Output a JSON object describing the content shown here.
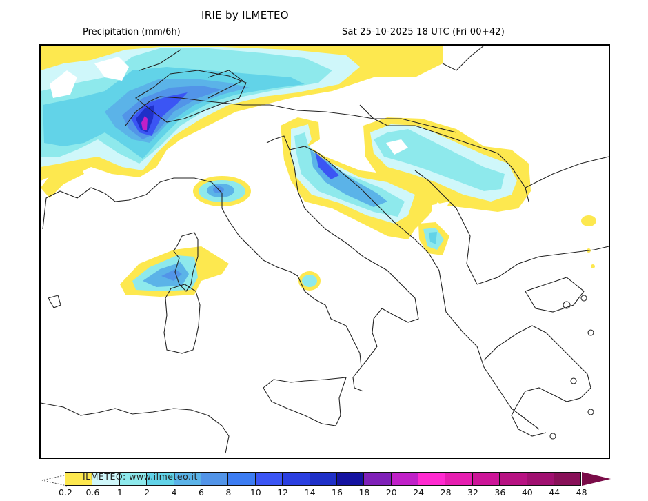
{
  "header": {
    "title": "IRIE by ILMETEO",
    "parameter": "Precipitation (mm/6h)",
    "valid_time": "Sat 25-10-2025 18 UTC (Fri 00+42)"
  },
  "map": {
    "region": "Italy, Alps and Balkans",
    "features": [
      {
        "name": "Western Alps / Rhône-Alpes max",
        "max_class": "20-24 mm"
      },
      {
        "name": "Northern Adriatic / Croatian coast",
        "max_class": "10-12 mm"
      },
      {
        "name": "Corsica",
        "max_class": "6-8 mm"
      },
      {
        "name": "Ligurian Sea",
        "max_class": "6-8 mm"
      },
      {
        "name": "Serbia / Romania",
        "max_class": "1-2 mm"
      },
      {
        "name": "Montenegro / Albania",
        "max_class": "2-4 mm"
      },
      {
        "name": "Lazio coast",
        "max_class": "1-2 mm"
      }
    ]
  },
  "legend": {
    "watermark": "ILMETEO: www.ilmeteo.it",
    "unit": "mm/6h",
    "labels": [
      "0.2",
      "0.6",
      "1",
      "2",
      "4",
      "6",
      "8",
      "10",
      "12",
      "14",
      "16",
      "18",
      "20",
      "24",
      "28",
      "32",
      "36",
      "40",
      "44",
      "48"
    ],
    "colors": [
      "#fde84f",
      "#cff7fa",
      "#8ee9ec",
      "#62d3e8",
      "#5bb3e8",
      "#5294e8",
      "#3c7cf2",
      "#3b55f4",
      "#2b3fe0",
      "#1f30c8",
      "#1412a0",
      "#7f20b8",
      "#c020c8",
      "#ff2ad0",
      "#e61eb0",
      "#cc1598",
      "#b71282",
      "#a01070",
      "#881058"
    ],
    "arrow_color": "#7a0c48"
  }
}
